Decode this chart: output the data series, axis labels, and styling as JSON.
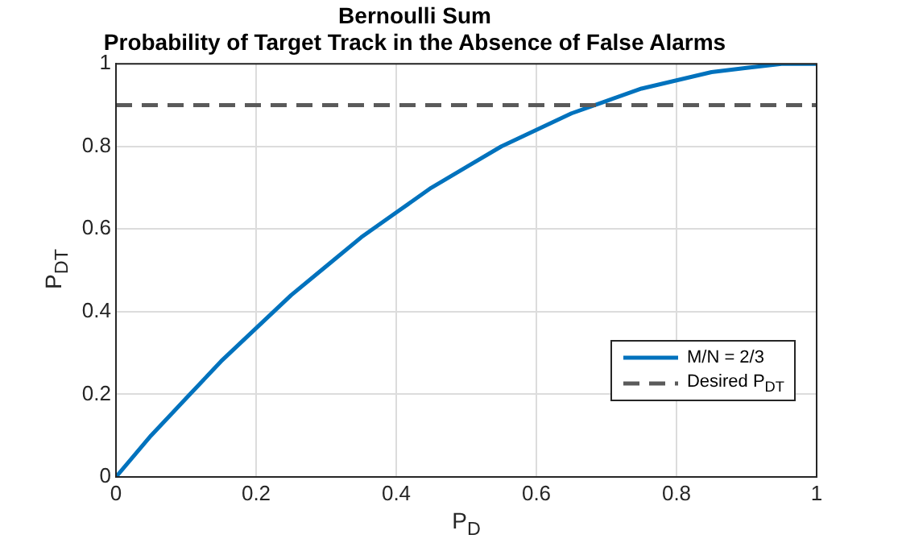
{
  "chart_data": {
    "type": "line",
    "title": "Bernoulli Sum",
    "subtitle": "Probability of Target Track in the Absence of False Alarms",
    "xlabel": "P$_{D}$",
    "ylabel": "P$_{DT}$",
    "x": [
      0,
      0.05,
      0.1,
      0.15,
      0.2,
      0.25,
      0.3,
      0.35,
      0.4,
      0.45,
      0.5,
      0.55,
      0.6,
      0.65,
      0.7,
      0.75,
      0.8,
      0.85,
      0.9,
      0.95,
      1
    ],
    "series": [
      {
        "name": "M/N = 2/3",
        "color": "#0072bd",
        "values": [
          0,
          0.1,
          0.19,
          0.28,
          0.36,
          0.44,
          0.51,
          0.58,
          0.64,
          0.7,
          0.75,
          0.8,
          0.84,
          0.88,
          0.91,
          0.94,
          0.96,
          0.98,
          0.99,
          1,
          1
        ]
      }
    ],
    "ref_lines": [
      {
        "axis": "y",
        "value": 0.9,
        "label": "Desired P$_{DT}$",
        "color": "#5a5a5a",
        "line_style": "dashed"
      }
    ],
    "xlim": [
      0,
      1
    ],
    "ylim": [
      0,
      1
    ],
    "xticks": [
      0,
      0.2,
      0.4,
      0.6,
      0.8,
      1
    ],
    "yticks": [
      0,
      0.2,
      0.4,
      0.6,
      0.8,
      1
    ],
    "grid": true,
    "legend": "bottom right",
    "marker": "none",
    "line_style": "solid"
  }
}
